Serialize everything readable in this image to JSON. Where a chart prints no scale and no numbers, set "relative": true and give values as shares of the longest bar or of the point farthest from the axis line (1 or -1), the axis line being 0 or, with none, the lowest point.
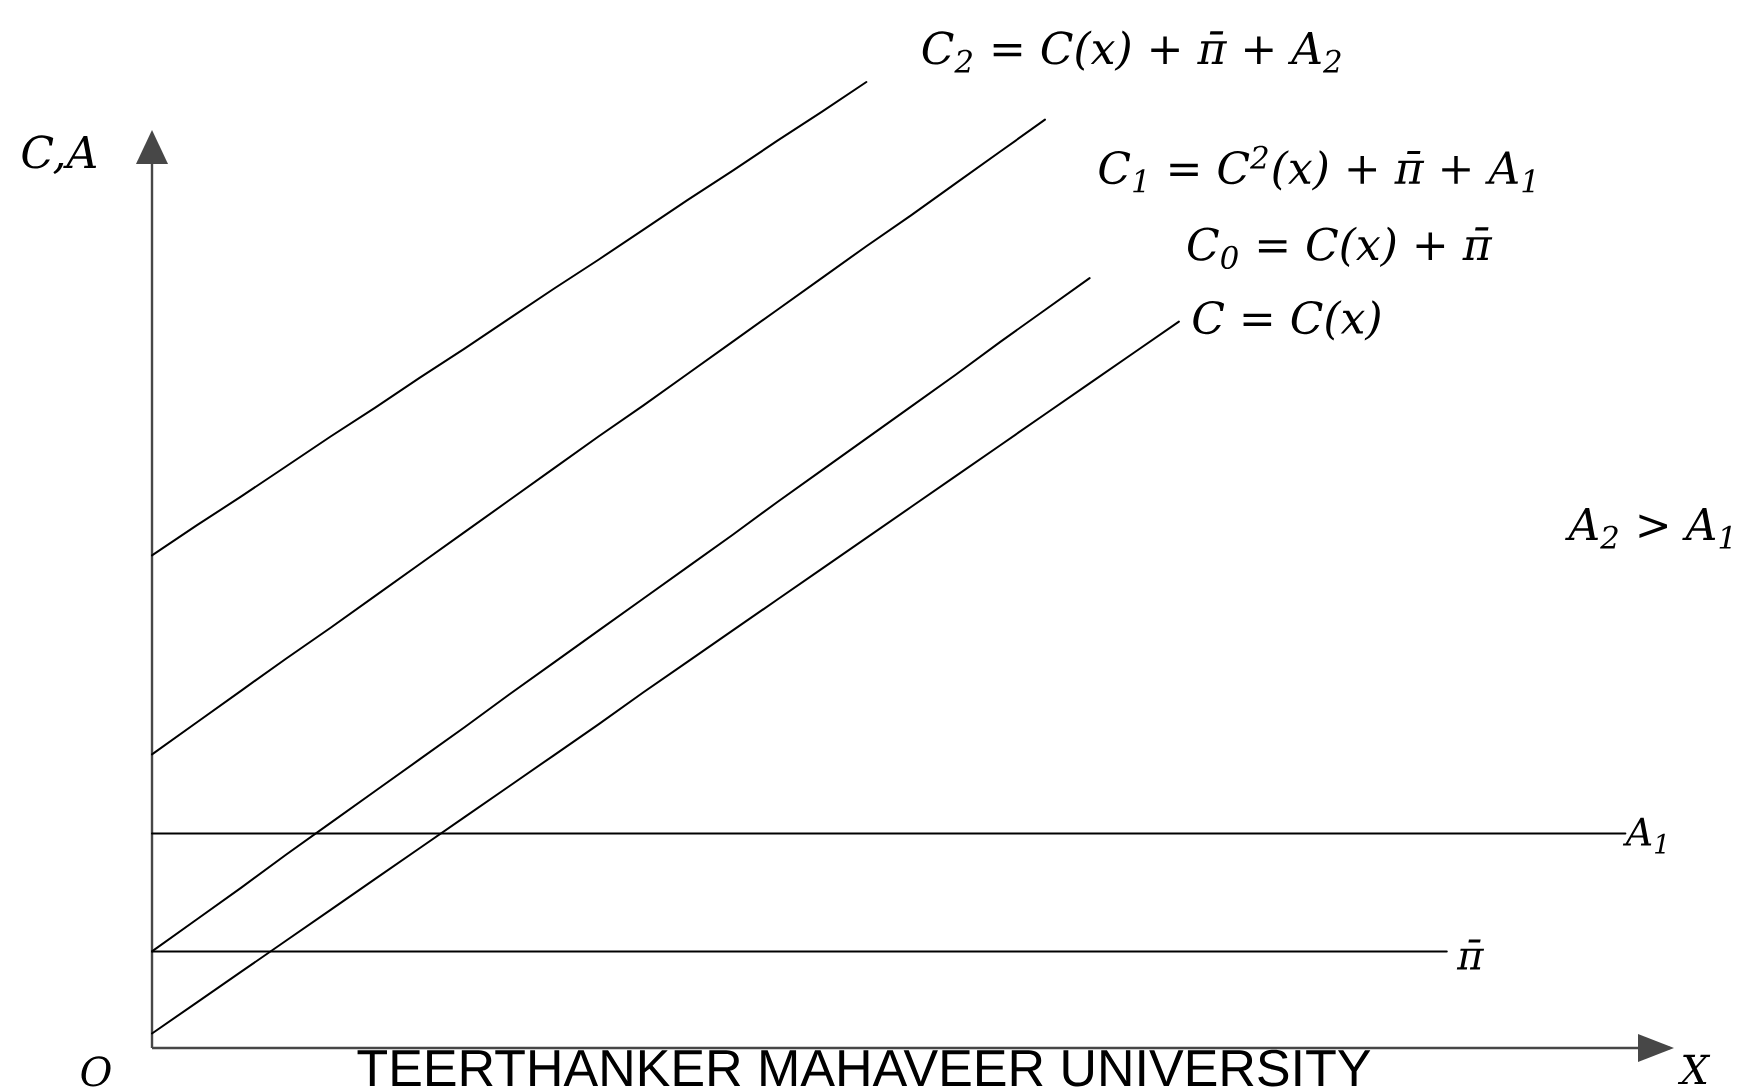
{
  "chart_data": {
    "type": "line",
    "relative": true,
    "line_style": "solid",
    "xlabel": "X",
    "ylabel": "C,A",
    "annotations": [
      "A$_{2}$ > A$_{1}$",
      "O",
      "TEERTHANKER MAHAVEER UNIVERSITY"
    ],
    "categories": [
      null,
      null,
      null,
      null,
      null,
      null,
      null,
      null,
      null,
      null,
      null,
      null,
      null,
      null,
      null,
      null,
      null,
      null,
      null,
      null,
      null,
      null,
      null,
      null,
      null,
      null,
      null,
      null,
      null,
      null,
      null,
      null,
      null,
      null,
      null
    ],
    "series": [
      {
        "name": "C$_{2}$ = C(x) + π̄ + A$_{2}$",
        "color": "#000000",
        "values": [
          0.51,
          0.541,
          0.571,
          0.602,
          0.633,
          0.663,
          0.694,
          0.724,
          0.755,
          0.786,
          0.816,
          0.847,
          0.878,
          0.908,
          0.939,
          0.969,
          1,
          null,
          null,
          null,
          null,
          null,
          null,
          null,
          null,
          null,
          null,
          null,
          null,
          null,
          null,
          null,
          null,
          null,
          null
        ]
      },
      {
        "name": "C$_{1}$ = C$^{2}$(x) + π̄ + A$_{1}$",
        "color": "#000000",
        "values": [
          0.304,
          0.337,
          0.37,
          0.403,
          0.435,
          0.468,
          0.501,
          0.534,
          0.567,
          0.6,
          0.633,
          0.665,
          0.698,
          0.731,
          0.764,
          0.797,
          0.83,
          0.862,
          0.895,
          0.928,
          0.961,
          null,
          null,
          null,
          null,
          null,
          null,
          null,
          null,
          null,
          null,
          null,
          null,
          null,
          null
        ]
      },
      {
        "name": "C$_{0}$ = C(x) + π̄",
        "color": "#000000",
        "values": [
          0.1,
          0.133,
          0.166,
          0.2,
          0.233,
          0.266,
          0.299,
          0.332,
          0.366,
          0.399,
          0.432,
          0.465,
          0.498,
          0.531,
          0.565,
          0.598,
          0.631,
          0.664,
          0.697,
          0.731,
          0.764,
          0.797,
          null,
          null,
          null,
          null,
          null,
          null,
          null,
          null,
          null,
          null,
          null,
          null,
          null
        ]
      },
      {
        "name": "C = C(x)",
        "color": "#000000",
        "values": [
          0.015,
          0.047,
          0.079,
          0.111,
          0.143,
          0.175,
          0.207,
          0.239,
          0.271,
          0.303,
          0.335,
          0.368,
          0.4,
          0.432,
          0.464,
          0.496,
          0.528,
          0.56,
          0.592,
          0.624,
          0.656,
          0.688,
          0.72,
          0.752,
          null,
          null,
          null,
          null,
          null,
          null,
          null,
          null,
          null,
          null,
          null
        ]
      },
      {
        "name": "A$_{1}$",
        "color": "#000000",
        "values": [
          0.222,
          0.222,
          0.222,
          0.222,
          0.222,
          0.222,
          0.222,
          0.222,
          0.222,
          0.222,
          0.222,
          0.222,
          0.222,
          0.222,
          0.222,
          0.222,
          0.222,
          0.222,
          0.222,
          0.222,
          0.222,
          0.222,
          0.222,
          0.222,
          0.222,
          0.222,
          0.222,
          0.222,
          0.222,
          0.222,
          0.222,
          0.222,
          0.222,
          0.222,
          null
        ]
      },
      {
        "name": "π̄",
        "color": "#000000",
        "values": [
          0.1,
          0.1,
          0.1,
          0.1,
          0.1,
          0.1,
          0.1,
          0.1,
          0.1,
          0.1,
          0.1,
          0.1,
          0.1,
          0.1,
          0.1,
          0.1,
          0.1,
          0.1,
          0.1,
          0.1,
          0.1,
          0.1,
          0.1,
          0.1,
          0.1,
          0.1,
          0.1,
          0.1,
          0.1,
          0.1,
          null,
          null,
          null,
          null,
          null
        ]
      }
    ]
  }
}
